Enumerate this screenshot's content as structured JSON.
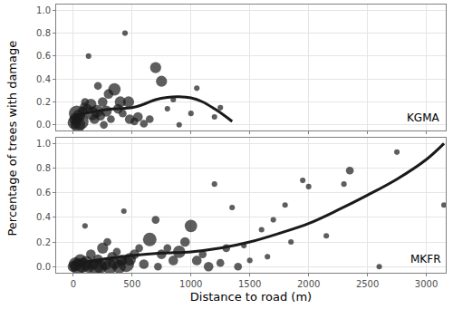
{
  "chart_data": {
    "type": "scatter",
    "x_label": "Distance to road (m)",
    "y_label": "Percentage of trees with damage",
    "xlim": [
      -145,
      3165
    ],
    "xticks": [
      0,
      500,
      1000,
      1500,
      2000,
      2500,
      3000
    ],
    "ylim": [
      -0.05,
      1.05
    ],
    "yticks": [
      {
        "value": 0,
        "label": "0.0"
      },
      {
        "value": 0.2,
        "label": "0.2"
      },
      {
        "value": 0.4,
        "label": "0.4"
      },
      {
        "value": 0.6,
        "label": "0.6"
      },
      {
        "value": 0.8,
        "label": "0.8"
      },
      {
        "value": 1.0,
        "label": "1.0"
      }
    ],
    "grid": true,
    "color": "#1a1a1a",
    "series": [
      {
        "name": "KGMA",
        "x": [
          10,
          20,
          30,
          40,
          50,
          60,
          80,
          90,
          100,
          120,
          130,
          150,
          160,
          180,
          200,
          210,
          230,
          250,
          260,
          280,
          300,
          320,
          350,
          380,
          400,
          420,
          440,
          470,
          480,
          520,
          550,
          600,
          650,
          700,
          750,
          800,
          850,
          900,
          1000,
          1050,
          1200,
          1250
        ],
        "values": [
          0.02,
          0.05,
          0.1,
          0.0,
          0.08,
          0.03,
          0.12,
          0.16,
          0.2,
          0.14,
          0.6,
          0.18,
          0.1,
          0.05,
          0.12,
          0.34,
          0.08,
          0.2,
          0.0,
          0.12,
          0.27,
          0.05,
          0.31,
          0.14,
          0.2,
          0.1,
          0.8,
          0.2,
          0.05,
          0.03,
          0.07,
          0.01,
          0.05,
          0.5,
          0.38,
          0.14,
          0.22,
          0.0,
          0.1,
          0.32,
          0.07,
          0.15
        ],
        "sizes": [
          6,
          5,
          8,
          7,
          5,
          9,
          3,
          2,
          2,
          3,
          1,
          4,
          6,
          3,
          5,
          2,
          3,
          3,
          2,
          4,
          3,
          2,
          5,
          3,
          4,
          2,
          1,
          4,
          3,
          2,
          3,
          2,
          2,
          4,
          4,
          1,
          1,
          1,
          1,
          1,
          1,
          1
        ],
        "smooth": {
          "x": [
            0,
            100,
            200,
            350,
            500,
            600,
            700,
            800,
            900,
            1000,
            1100,
            1200,
            1300,
            1350
          ],
          "values": [
            0.07,
            0.1,
            0.12,
            0.14,
            0.15,
            0.18,
            0.22,
            0.24,
            0.245,
            0.235,
            0.2,
            0.14,
            0.07,
            0.03
          ]
        }
      },
      {
        "name": "MKFR",
        "x": [
          0,
          20,
          40,
          60,
          80,
          100,
          110,
          130,
          150,
          170,
          190,
          210,
          230,
          250,
          270,
          290,
          310,
          330,
          350,
          370,
          390,
          410,
          430,
          450,
          480,
          520,
          560,
          600,
          650,
          700,
          720,
          750,
          800,
          850,
          900,
          950,
          1000,
          1050,
          1100,
          1150,
          1200,
          1250,
          1300,
          1350,
          1400,
          1450,
          1500,
          1600,
          1650,
          1700,
          1800,
          1850,
          1950,
          2000,
          2150,
          2300,
          2350,
          2600,
          2750,
          3150
        ],
        "values": [
          0.0,
          0.02,
          0.0,
          0.05,
          0.01,
          0.33,
          0.03,
          0.0,
          0.1,
          0.02,
          0.0,
          0.06,
          0.0,
          0.15,
          0.02,
          0.2,
          0.0,
          0.08,
          0.03,
          0.12,
          0.0,
          0.05,
          0.45,
          0.02,
          0.06,
          0.1,
          0.15,
          0.02,
          0.22,
          0.38,
          0.0,
          0.1,
          0.15,
          0.05,
          0.12,
          0.2,
          0.33,
          0.05,
          0.1,
          0.0,
          0.67,
          0.03,
          0.15,
          0.48,
          0.0,
          0.17,
          0.05,
          0.3,
          0.08,
          0.38,
          0.5,
          0.2,
          0.7,
          0.65,
          0.25,
          0.67,
          0.78,
          0.0,
          0.93,
          0.5
        ],
        "sizes": [
          4,
          6,
          8,
          5,
          7,
          1,
          6,
          5,
          3,
          4,
          8,
          3,
          6,
          4,
          5,
          2,
          7,
          3,
          5,
          2,
          6,
          4,
          1,
          8,
          5,
          3,
          2,
          3,
          6,
          2,
          2,
          3,
          2,
          3,
          5,
          3,
          5,
          3,
          2,
          3,
          1,
          2,
          2,
          1,
          2,
          1,
          1,
          1,
          1,
          1,
          1,
          1,
          1,
          1,
          1,
          1,
          2,
          1,
          1,
          1
        ],
        "smooth": {
          "x": [
            0,
            250,
            500,
            750,
            1000,
            1250,
            1500,
            1750,
            2000,
            2250,
            2500,
            2750,
            3000,
            3150
          ],
          "values": [
            0.02,
            0.06,
            0.09,
            0.11,
            0.12,
            0.15,
            0.2,
            0.27,
            0.35,
            0.46,
            0.58,
            0.71,
            0.87,
            1.0
          ]
        }
      }
    ]
  }
}
